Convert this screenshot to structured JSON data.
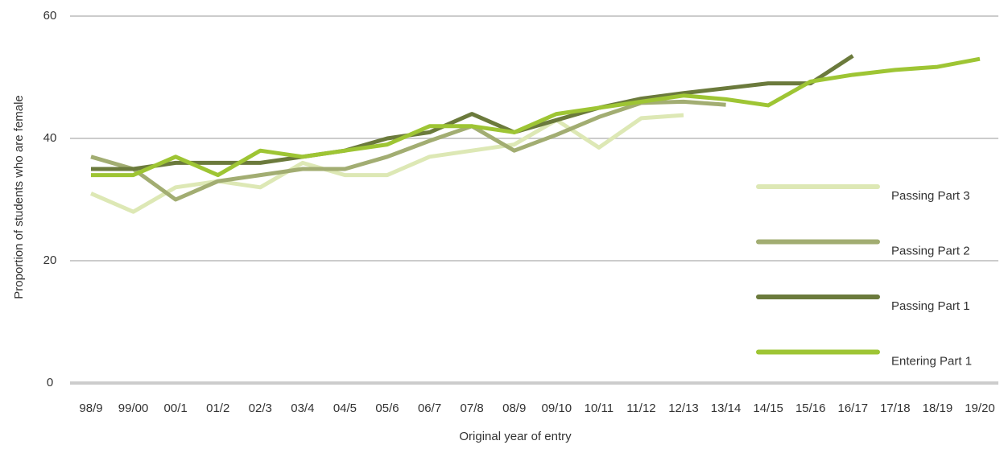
{
  "chart_data": {
    "type": "line",
    "x_label": "Original year of entry",
    "y_label": "Proportion of students who are female",
    "categories": [
      "98/9",
      "99/00",
      "00/1",
      "01/2",
      "02/3",
      "03/4",
      "04/5",
      "05/6",
      "06/7",
      "07/8",
      "08/9",
      "09/10",
      "10/11",
      "11/12",
      "12/13",
      "13/14",
      "14/15",
      "15/16",
      "16/17",
      "17/18",
      "18/19",
      "19/20"
    ],
    "series": [
      {
        "name": "Passing Part 3",
        "color": "#dde8b5",
        "values": [
          31,
          28,
          32,
          33,
          32,
          36,
          34,
          34,
          37,
          38,
          39,
          43,
          38.5,
          43.3,
          43.8,
          null,
          null,
          null,
          null,
          null,
          null,
          null
        ]
      },
      {
        "name": "Passing Part 2",
        "color": "#a2ad72",
        "values": [
          37,
          35,
          30,
          33,
          34,
          35,
          35,
          37,
          39.6,
          42,
          38,
          40.6,
          43.5,
          45.8,
          46,
          45.5,
          null,
          null,
          null,
          null,
          null,
          null
        ]
      },
      {
        "name": "Passing Part 1",
        "color": "#6b7a3c",
        "values": [
          35,
          35,
          36,
          36,
          36,
          37,
          38,
          40,
          41,
          44,
          41,
          43,
          45,
          46.5,
          47.4,
          48.2,
          49,
          49,
          53.5,
          null,
          null,
          null
        ]
      },
      {
        "name": "Entering Part 1",
        "color": "#9ec534",
        "values": [
          34,
          34,
          37,
          34,
          38,
          37,
          38,
          39,
          42,
          42,
          41,
          44,
          45,
          46,
          47,
          46.4,
          45.4,
          49.3,
          50.4,
          51.2,
          51.7,
          53
        ]
      }
    ],
    "ylim": [
      0,
      60
    ],
    "yticks": [
      0,
      20,
      40,
      60
    ],
    "grid": true
  }
}
